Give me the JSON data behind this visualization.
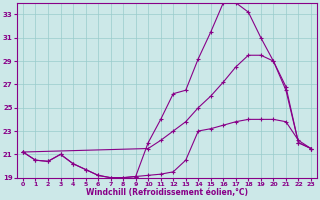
{
  "xlabel": "Windchill (Refroidissement éolien,°C)",
  "xlim": [
    -0.5,
    23.5
  ],
  "ylim": [
    19,
    34
  ],
  "yticks": [
    19,
    21,
    23,
    25,
    27,
    29,
    31,
    33
  ],
  "xticks": [
    0,
    1,
    2,
    3,
    4,
    5,
    6,
    7,
    8,
    9,
    10,
    11,
    12,
    13,
    14,
    15,
    16,
    17,
    18,
    19,
    20,
    21,
    22,
    23
  ],
  "bg_color": "#cce8e8",
  "line_color": "#880088",
  "grid_color": "#99cccc",
  "line1_x": [
    0,
    1,
    2,
    3,
    4,
    5,
    6,
    7,
    8,
    9,
    10,
    11,
    12,
    13,
    14,
    15,
    16,
    17,
    18,
    19,
    20,
    21,
    22,
    23
  ],
  "line1_y": [
    21.2,
    20.5,
    20.4,
    21.0,
    20.2,
    19.7,
    19.2,
    19.0,
    19.0,
    19.1,
    19.2,
    19.3,
    19.5,
    20.5,
    23.0,
    23.2,
    23.5,
    23.8,
    24.0,
    24.0,
    24.0,
    23.8,
    22.2,
    21.5
  ],
  "line2_x": [
    0,
    1,
    2,
    3,
    4,
    5,
    6,
    7,
    8,
    9,
    10,
    11,
    12,
    13,
    14,
    15,
    16,
    17,
    18,
    19,
    20,
    21,
    22,
    23
  ],
  "line2_y": [
    21.2,
    20.5,
    20.4,
    21.0,
    20.2,
    19.7,
    19.2,
    19.0,
    19.0,
    19.1,
    22.0,
    24.0,
    26.2,
    26.5,
    29.2,
    31.5,
    34.0,
    34.0,
    33.2,
    31.0,
    29.0,
    26.8,
    22.0,
    21.5
  ],
  "line3_x": [
    0,
    10,
    11,
    12,
    13,
    14,
    15,
    16,
    17,
    18,
    19,
    20,
    21,
    22,
    23
  ],
  "line3_y": [
    21.2,
    21.5,
    22.2,
    23.0,
    23.8,
    25.0,
    26.0,
    27.2,
    28.5,
    29.5,
    29.5,
    29.0,
    26.5,
    22.0,
    21.5
  ]
}
